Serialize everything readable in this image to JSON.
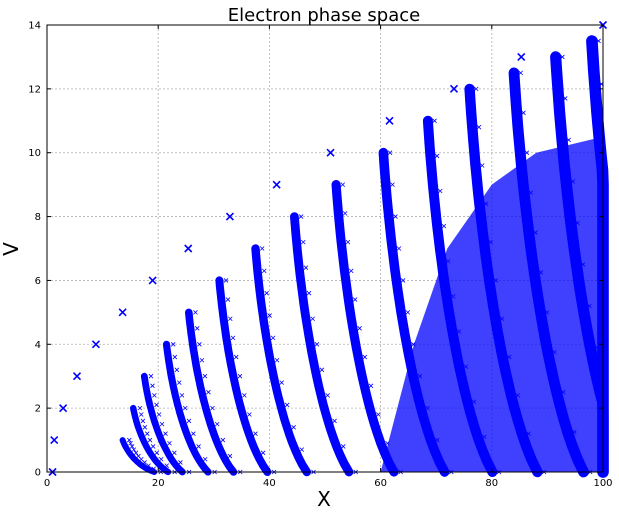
{
  "chart_data": {
    "type": "scatter",
    "title": "Electron phase space",
    "xlabel": "X",
    "ylabel": "V",
    "xlim": [
      0,
      100
    ],
    "ylim": [
      0,
      14
    ],
    "grid": true,
    "marker": "x",
    "color": "#0000ff",
    "xticks": [
      "0",
      "20",
      "40",
      "60",
      "80",
      "100"
    ],
    "yticks": [
      "0",
      "2",
      "4",
      "6",
      "8",
      "10",
      "12",
      "14"
    ],
    "series": [
      {
        "name": "",
        "points": [
          [
            1.0,
            0
          ],
          [
            1.3,
            1
          ],
          [
            2.9,
            2
          ],
          [
            5.4,
            3
          ],
          [
            8.8,
            4
          ],
          [
            13.6,
            5
          ],
          [
            19.0,
            6
          ],
          [
            25.4,
            7
          ],
          [
            32.9,
            8
          ],
          [
            41.3,
            9
          ],
          [
            51.0,
            10
          ],
          [
            61.6,
            11
          ],
          [
            73.2,
            12
          ],
          [
            85.3,
            13
          ],
          [
            100.0,
            14
          ]
        ]
      }
    ],
    "arc_bands": [
      {
        "x_start": 13.6,
        "v_start": 1.0
      },
      {
        "x_start": 15.5,
        "v_start": 2.0
      },
      {
        "x_start": 17.5,
        "v_start": 3.0
      },
      {
        "x_start": 21.5,
        "v_start": 4.0
      },
      {
        "x_start": 25.5,
        "v_start": 5.0
      },
      {
        "x_start": 31.0,
        "v_start": 6.0
      },
      {
        "x_start": 37.5,
        "v_start": 7.0
      },
      {
        "x_start": 44.5,
        "v_start": 8.0
      },
      {
        "x_start": 52.0,
        "v_start": 9.0
      },
      {
        "x_start": 60.5,
        "v_start": 10.0
      },
      {
        "x_start": 68.5,
        "v_start": 11.0
      },
      {
        "x_start": 76.0,
        "v_start": 12.0
      },
      {
        "x_start": 84.0,
        "v_start": 12.5
      },
      {
        "x_start": 91.5,
        "v_start": 13.0
      },
      {
        "x_start": 98.0,
        "v_start": 13.5
      }
    ]
  }
}
